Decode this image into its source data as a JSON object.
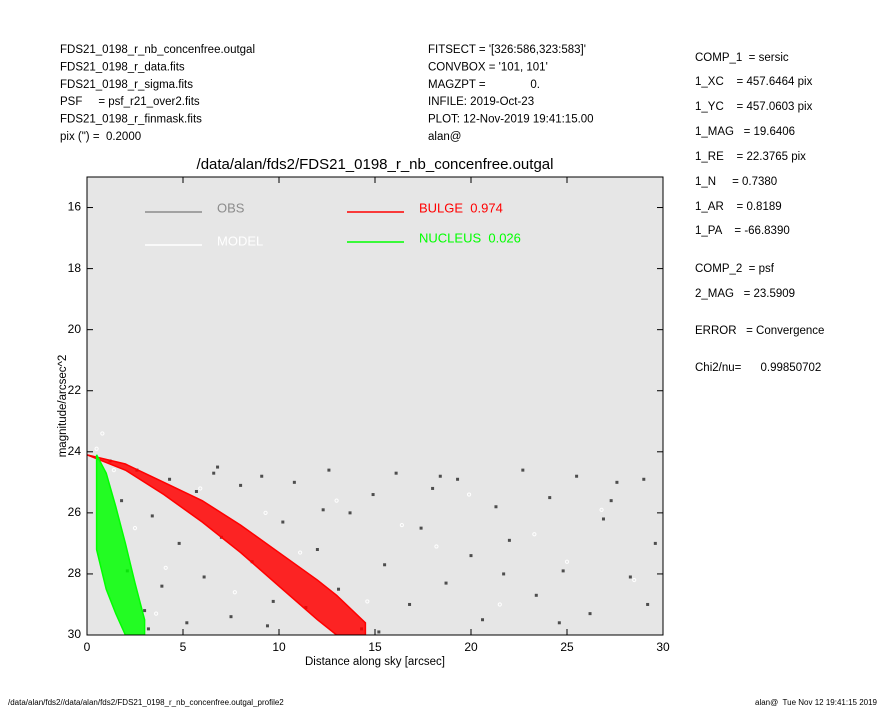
{
  "header": {
    "left": [
      "FDS21_0198_r_nb_concenfree.outgal",
      "FDS21_0198_r_data.fits",
      "FDS21_0198_r_sigma.fits",
      "PSF     = psf_r21_over2.fits",
      "FDS21_0198_r_finmask.fits",
      "pix (\") =  0.2000"
    ],
    "middle": [
      "FITSECT = '[326:586,323:583]'",
      "CONVBOX = '101, 101'",
      "MAGZPT =              0.",
      "INFILE: 2019-Oct-23",
      "PLOT: 12-Nov-2019 19:41:15.00",
      "alan@"
    ],
    "right": [
      "COMP_1  = sersic",
      "1_XC    = 457.6464 pix",
      "1_YC    = 457.0603 pix",
      "1_MAG   = 19.6406",
      "1_RE    = 22.3765 pix",
      "1_N     = 0.7380",
      "1_AR    = 0.8189",
      "1_PA    = -66.8390",
      "COMP_2  = psf",
      "2_MAG   = 23.5909",
      "ERROR   = Convergence",
      "Chi2/nu=      0.99850702"
    ]
  },
  "footer": {
    "left": "/data/alan/fds2//data/alan/fds2/FDS21_0198_r_nb_concenfree.outgal_profile2",
    "right": "alan@  Tue Nov 12 19:41:15 2019"
  },
  "chart_data": {
    "type": "scatter",
    "title": "/data/alan/fds2/FDS21_0198_r_nb_concenfree.outgal",
    "x_label": "Distance along sky [arcsec]",
    "y_label": "magnitude/arcsec^2",
    "xlim": [
      0,
      30
    ],
    "ylim": [
      30,
      15
    ],
    "xticks": [
      0,
      5,
      10,
      15,
      20,
      25,
      30
    ],
    "yticks": [
      16,
      18,
      20,
      22,
      24,
      26,
      28,
      30
    ],
    "background": "#e6e6e6",
    "series": [
      {
        "name": "OBS",
        "color": "#8c8c8c",
        "marker_color": "#4d4d4d",
        "x": [
          1.2,
          1.8,
          2.1,
          2.6,
          3.0,
          3.4,
          3.9,
          4.3,
          4.8,
          5.2,
          5.7,
          6.1,
          6.6,
          7.0,
          7.5,
          8.0,
          8.6,
          9.1,
          9.7,
          10.2,
          10.8,
          11.4,
          12.0,
          12.6,
          13.1,
          13.7,
          14.3,
          14.9,
          15.5,
          16.1,
          16.8,
          17.4,
          18.0,
          18.7,
          19.3,
          20.0,
          20.6,
          21.3,
          22.0,
          22.7,
          23.4,
          24.1,
          24.8,
          25.5,
          26.2,
          26.9,
          27.6,
          28.3,
          29.0,
          29.6,
          3.2,
          6.8,
          9.4,
          12.3,
          15.2,
          18.4,
          21.7,
          24.6,
          27.3,
          29.2
        ],
        "values": [
          24.3,
          25.6,
          27.9,
          24.6,
          29.2,
          26.1,
          28.4,
          24.9,
          27.0,
          29.6,
          25.3,
          28.1,
          24.7,
          26.8,
          29.4,
          25.1,
          27.6,
          24.8,
          28.9,
          26.3,
          25.0,
          29.1,
          27.2,
          24.6,
          28.5,
          26.0,
          29.8,
          25.4,
          27.7,
          24.7,
          29.0,
          26.5,
          25.2,
          28.3,
          24.9,
          27.4,
          29.5,
          25.8,
          26.9,
          24.6,
          28.7,
          25.5,
          27.9,
          24.8,
          29.3,
          26.2,
          25.0,
          28.1,
          24.9,
          27.0,
          29.8,
          24.5,
          29.7,
          25.9,
          29.9,
          24.8,
          28.0,
          29.6,
          25.6,
          29.0
        ]
      },
      {
        "name": "MODEL",
        "color": "#ffffff",
        "x": [
          2.5,
          4.1,
          5.9,
          7.7,
          9.3,
          11.1,
          13.0,
          14.6,
          16.4,
          18.2,
          19.9,
          21.5,
          23.3,
          25.0,
          26.8,
          28.5,
          0.8,
          0.5,
          1.4,
          3.6
        ],
        "values": [
          26.5,
          27.8,
          25.2,
          28.6,
          26.0,
          27.3,
          25.6,
          28.9,
          26.4,
          27.1,
          25.4,
          29.0,
          26.7,
          27.6,
          25.9,
          28.2,
          23.4,
          23.9,
          24.6,
          29.3
        ]
      },
      {
        "name": "BULGE  0.974",
        "color": "#ff0000",
        "x": [
          0,
          2,
          4,
          6,
          8,
          10,
          12,
          13,
          14.5
        ],
        "y_high": [
          24.1,
          24.4,
          25.0,
          25.6,
          26.4,
          27.3,
          28.2,
          28.7,
          29.6
        ],
        "y_low": [
          24.1,
          24.6,
          25.4,
          26.3,
          27.3,
          28.4,
          29.5,
          30,
          30
        ]
      },
      {
        "name": "NUCLEUS  0.026",
        "color": "#00ff00",
        "x": [
          0.5,
          1,
          1.5,
          2,
          2.5,
          3
        ],
        "y_high": [
          24.1,
          24.7,
          25.8,
          27.0,
          28.3,
          29.5
        ],
        "y_low": [
          27.2,
          28.5,
          29.3,
          30,
          30,
          30
        ]
      }
    ]
  }
}
